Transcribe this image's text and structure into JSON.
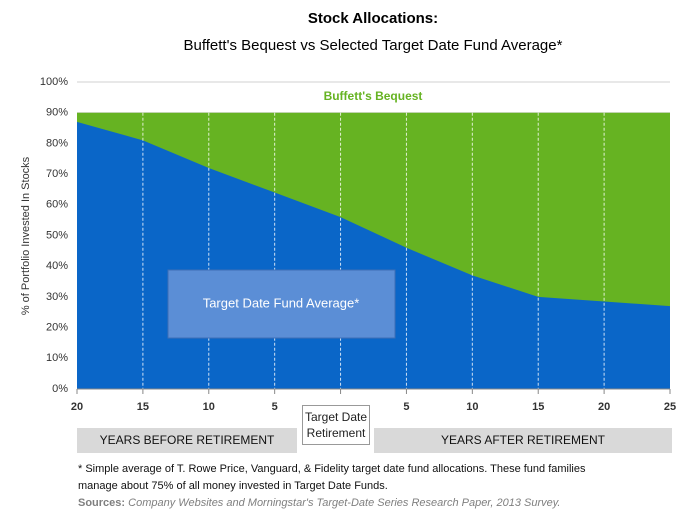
{
  "chart_data": {
    "type": "area",
    "title": "Stock Allocations:",
    "subtitle": "Buffett's Bequest vs Selected Target Date Fund Average*",
    "y_label": "% of Portfolio Invested In Stocks",
    "categories": [
      "20",
      "15",
      "10",
      "5",
      "Target Date Retirement",
      "5",
      "10",
      "15",
      "20",
      "25"
    ],
    "series": [
      {
        "name": "Buffett's Bequest",
        "color": "#66b322",
        "values": [
          90,
          90,
          90,
          90,
          90,
          90,
          90,
          90,
          90,
          90
        ]
      },
      {
        "name": "Target Date Fund Average*",
        "color": "#0a66c8",
        "values": [
          87,
          81,
          72,
          64,
          56,
          46,
          37,
          30,
          28.5,
          27
        ]
      }
    ],
    "ylim": [
      0,
      100
    ],
    "yticks": [
      {
        "value": 0,
        "label": "0%"
      },
      {
        "value": 10,
        "label": "10%"
      },
      {
        "value": 20,
        "label": "20%"
      },
      {
        "value": 30,
        "label": "30%"
      },
      {
        "value": 40,
        "label": "40%"
      },
      {
        "value": 50,
        "label": "50%"
      },
      {
        "value": 60,
        "label": "60%"
      },
      {
        "value": 70,
        "label": "70%"
      },
      {
        "value": 80,
        "label": "80%"
      },
      {
        "value": 90,
        "label": "90%"
      },
      {
        "value": 100,
        "label": "100%"
      }
    ],
    "grid": true,
    "periods": [
      "YEARS BEFORE RETIREMENT",
      "YEARS AFTER RETIREMENT"
    ],
    "footnote": [
      "* Simple average of  T. Rowe  Price, Vanguard, &  Fidelity target date fund  allocations. These fund families",
      "manage about 75% of all money invested in Target Date Funds."
    ],
    "sources_label": "Sources:",
    "sources_text": "Company Websites and Morningstar's Target-Date Series Research Paper, 2013 Survey."
  }
}
